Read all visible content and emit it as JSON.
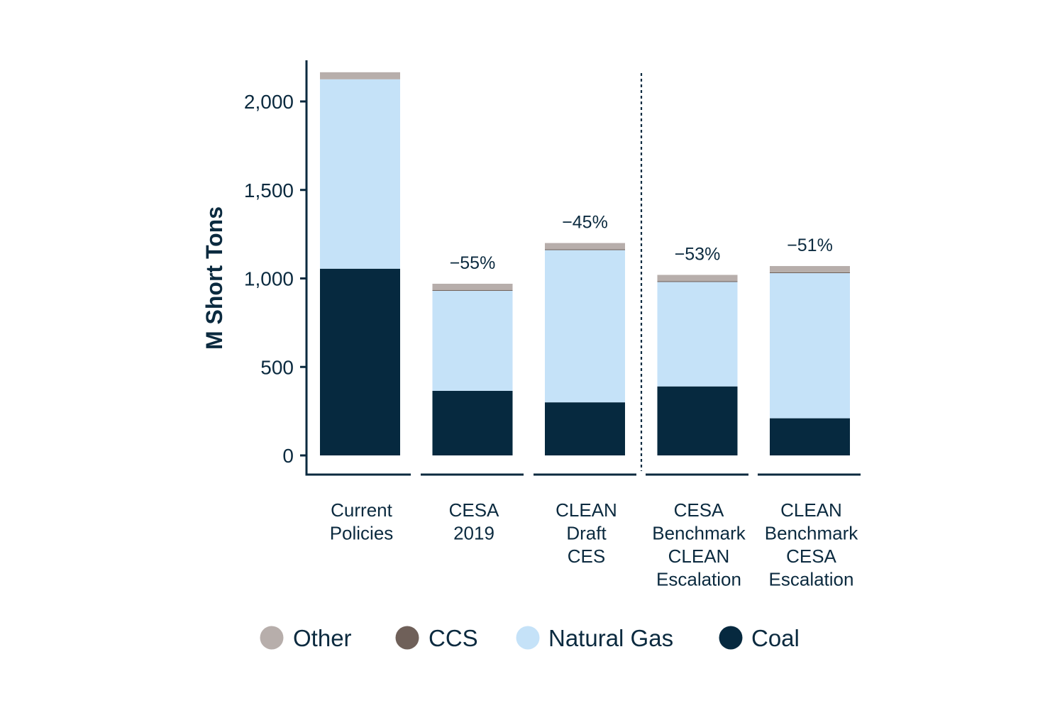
{
  "chart_data": {
    "type": "bar",
    "stacked": true,
    "title": "",
    "xlabel": "",
    "ylabel": "M Short Tons",
    "ylim": [
      0,
      2220
    ],
    "yticks": [
      0,
      500,
      1000,
      1500,
      2000
    ],
    "ytick_labels": [
      "0",
      "500",
      "1,000",
      "1,500",
      "2,000"
    ],
    "grid": false,
    "legend_position": "bottom",
    "categories": [
      [
        "Current",
        "Policies"
      ],
      [
        "CESA",
        "2019"
      ],
      [
        "CLEAN",
        "Draft",
        "CES"
      ],
      [
        "CESA",
        "Benchmark",
        "CLEAN",
        "Escalation"
      ],
      [
        "CLEAN",
        "Benchmark",
        "CESA",
        "Escalation"
      ]
    ],
    "series": [
      {
        "name": "Coal",
        "color": "#06293f",
        "values": [
          1055,
          365,
          300,
          390,
          210
        ]
      },
      {
        "name": "Natural Gas",
        "color": "#c5e2f8",
        "values": [
          1070,
          565,
          860,
          590,
          820
        ]
      },
      {
        "name": "CCS",
        "color": "#6f6059",
        "values": [
          0,
          5,
          5,
          5,
          5
        ]
      },
      {
        "name": "Other",
        "color": "#b7aeab",
        "values": [
          40,
          35,
          35,
          35,
          35
        ]
      }
    ],
    "annotations": [
      "",
      "−55%",
      "−45%",
      "−53%",
      "−51%"
    ],
    "legend_order": [
      "Other",
      "CCS",
      "Natural Gas",
      "Coal"
    ],
    "divider_after_category": 3
  }
}
